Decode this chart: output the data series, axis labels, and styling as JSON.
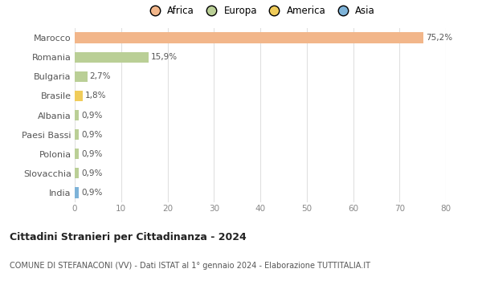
{
  "countries": [
    "Marocco",
    "Romania",
    "Bulgaria",
    "Brasile",
    "Albania",
    "Paesi Bassi",
    "Polonia",
    "Slovacchia",
    "India"
  ],
  "values": [
    75.2,
    15.9,
    2.7,
    1.8,
    0.9,
    0.9,
    0.9,
    0.9,
    0.9
  ],
  "labels": [
    "75,2%",
    "15,9%",
    "2,7%",
    "1,8%",
    "0,9%",
    "0,9%",
    "0,9%",
    "0,9%",
    "0,9%"
  ],
  "colors": [
    "#F2B68A",
    "#BACF96",
    "#BACF96",
    "#F0CC5A",
    "#BACF96",
    "#BACF96",
    "#BACF96",
    "#BACF96",
    "#7EB3D8"
  ],
  "legend_labels": [
    "Africa",
    "Europa",
    "America",
    "Asia"
  ],
  "legend_colors": [
    "#F2B68A",
    "#BACF96",
    "#F0CC5A",
    "#7EB3D8"
  ],
  "xlim": [
    0,
    80
  ],
  "xticks": [
    0,
    10,
    20,
    30,
    40,
    50,
    60,
    70,
    80
  ],
  "title": "Cittadini Stranieri per Cittadinanza - 2024",
  "subtitle": "COMUNE DI STEFANACONI (VV) - Dati ISTAT al 1° gennaio 2024 - Elaborazione TUTTITALIA.IT",
  "bg_color": "#ffffff",
  "grid_color": "#e0e0e0",
  "bar_height": 0.55
}
